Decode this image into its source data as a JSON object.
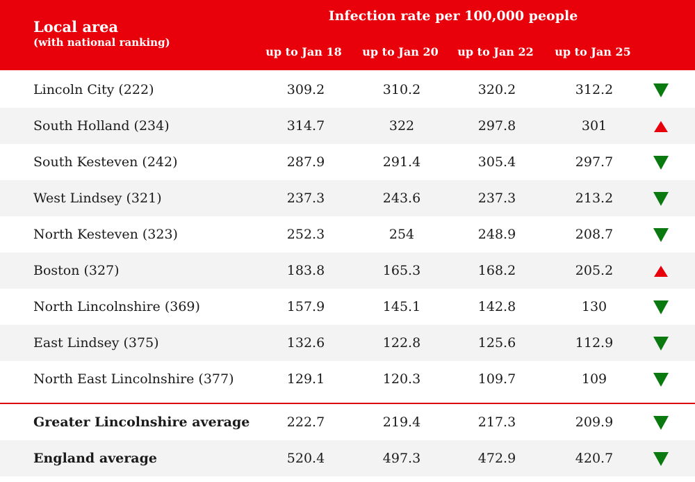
{
  "header": {
    "area_label": "Local area",
    "area_sublabel": "(with national ranking)",
    "group_label": "Infection rate per 100,000 people",
    "columns": [
      "up to Jan 18",
      "up to Jan 20",
      "up to Jan 22",
      "up to Jan 25"
    ]
  },
  "colors": {
    "header_bg": "#e8000b",
    "down": "#0a7a10",
    "up": "#e8000b",
    "divider": "#d90010"
  },
  "chart_data": {
    "type": "table",
    "columns": [
      "up to Jan 18",
      "up to Jan 20",
      "up to Jan 22",
      "up to Jan 25"
    ],
    "rows": [
      {
        "area": "Lincoln City (222)",
        "values": [
          "309.2",
          "310.2",
          "320.2",
          "312.2"
        ],
        "trend": "down"
      },
      {
        "area": "South Holland (234)",
        "values": [
          "314.7",
          "322",
          "297.8",
          "301"
        ],
        "trend": "up"
      },
      {
        "area": "South Kesteven (242)",
        "values": [
          "287.9",
          "291.4",
          "305.4",
          "297.7"
        ],
        "trend": "down"
      },
      {
        "area": "West Lindsey (321)",
        "values": [
          "237.3",
          "243.6",
          "237.3",
          "213.2"
        ],
        "trend": "down"
      },
      {
        "area": "North Kesteven (323)",
        "values": [
          "252.3",
          "254",
          "248.9",
          "208.7"
        ],
        "trend": "down"
      },
      {
        "area": "Boston (327)",
        "values": [
          "183.8",
          "165.3",
          "168.2",
          "205.2"
        ],
        "trend": "up"
      },
      {
        "area": "North Lincolnshire (369)",
        "values": [
          "157.9",
          "145.1",
          "142.8",
          "130"
        ],
        "trend": "down"
      },
      {
        "area": "East Lindsey (375)",
        "values": [
          "132.6",
          "122.8",
          "125.6",
          "112.9"
        ],
        "trend": "down"
      },
      {
        "area": "North East Lincolnshire (377)",
        "values": [
          "129.1",
          "120.3",
          "109.7",
          "109"
        ],
        "trend": "down"
      }
    ],
    "averages": [
      {
        "area": "Greater Lincolnshire average",
        "values": [
          "222.7",
          "219.4",
          "217.3",
          "209.9"
        ],
        "trend": "down"
      },
      {
        "area": "England average",
        "values": [
          "520.4",
          "497.3",
          "472.9",
          "420.7"
        ],
        "trend": "down"
      }
    ]
  }
}
